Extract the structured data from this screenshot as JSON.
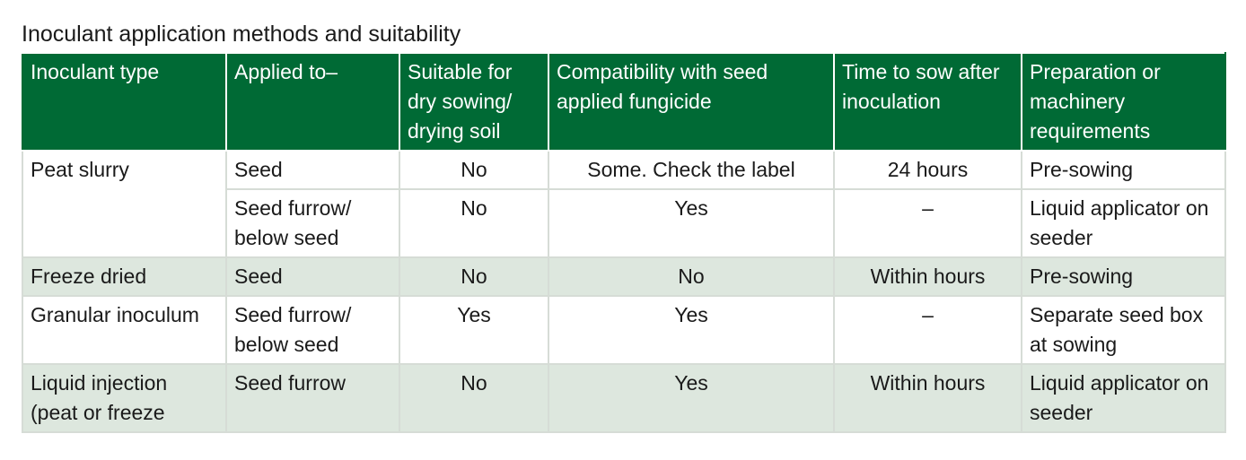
{
  "caption": "Inoculant application methods and suitability",
  "headers": [
    "Inoculant type",
    "Applied to–",
    "Suitable for dry sowing/ drying soil",
    "Compatibility with seed applied fungicide",
    "Time to sow after inoculation",
    "Preparation or machinery requirements"
  ],
  "rows": [
    {
      "type": "Peat slurry",
      "applied_to": "Seed",
      "dry_sowing": "No",
      "fungicide": "Some. Check the label",
      "time_to_sow": "24 hours",
      "preparation": "Pre-sowing"
    },
    {
      "applied_to": "Seed furrow/ below seed",
      "dry_sowing": "No",
      "fungicide": "Yes",
      "time_to_sow": "–",
      "preparation": "Liquid applicator on seeder"
    },
    {
      "type": "Freeze dried",
      "applied_to": "Seed",
      "dry_sowing": "No",
      "fungicide": "No",
      "time_to_sow": "Within hours",
      "preparation": "Pre-sowing"
    },
    {
      "type": "Granular inoculum",
      "applied_to": "Seed furrow/ below seed",
      "dry_sowing": "Yes",
      "fungicide": "Yes",
      "time_to_sow": "–",
      "preparation": "Separate seed box at sowing"
    },
    {
      "type": "Liquid injection (peat or freeze",
      "applied_to": "Seed furrow",
      "dry_sowing": "No",
      "fungicide": "Yes",
      "time_to_sow": "Within hours",
      "preparation": "Liquid applicator on seeder"
    }
  ],
  "colors": {
    "header_bg": "#006a35",
    "header_text": "#ffffff",
    "shaded_row_bg": "#dde7de",
    "grid_line": "#d6dcd6"
  }
}
